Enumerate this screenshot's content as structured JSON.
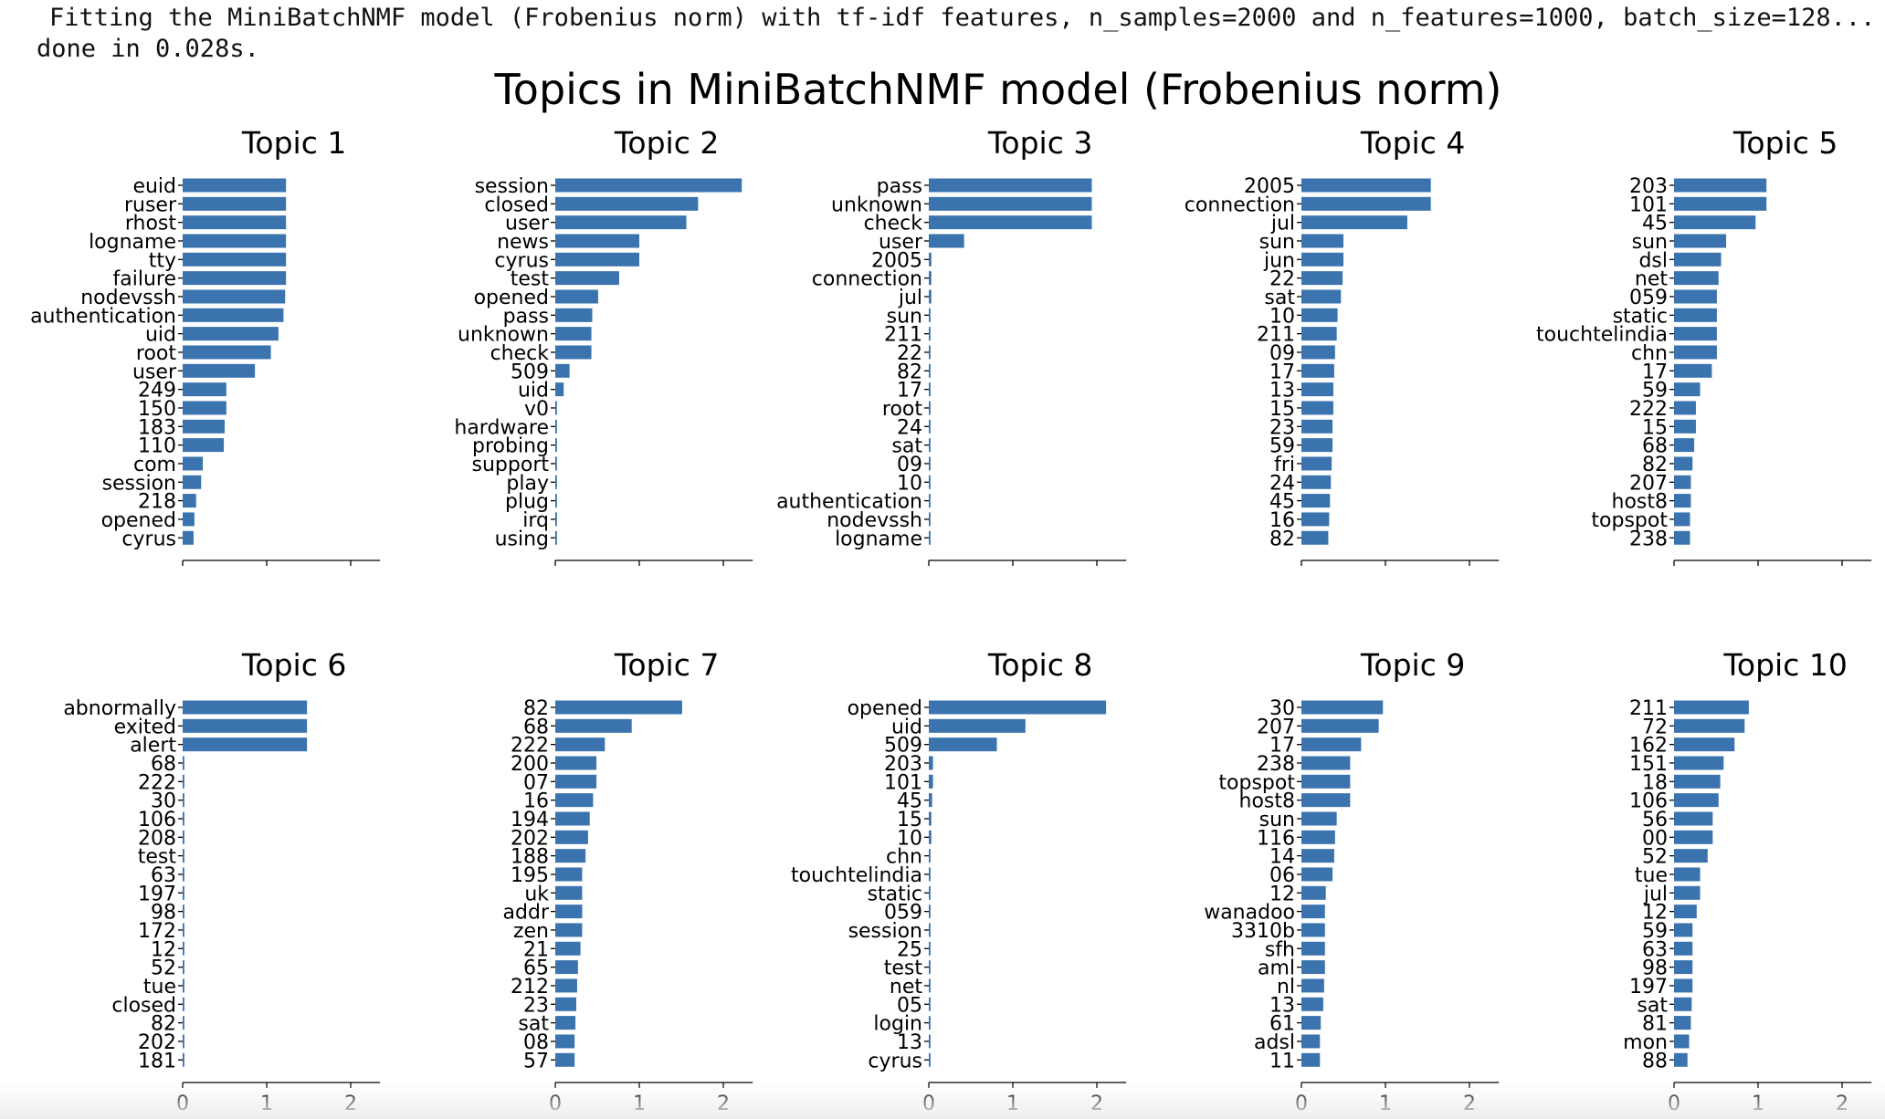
{
  "log": {
    "line1": "Fitting the MiniBatchNMF model (Frobenius norm) with tf-idf features, n_samples=2000 and n_features=1000, batch_size=128...",
    "line2": "done in 0.028s."
  },
  "colors": {
    "bar": "#3a73ad",
    "axis": "#000000"
  },
  "chart_data": {
    "type": "bar",
    "orientation": "horizontal",
    "title": "Topics in MiniBatchNMF model (Frobenius norm)",
    "layout": "2x5 grid",
    "xlim": [
      0,
      2.35
    ],
    "xticks": [
      0,
      1,
      2
    ],
    "grid": false,
    "topics": [
      {
        "title": "Topic 1",
        "words": [
          "euid",
          "ruser",
          "rhost",
          "logname",
          "tty",
          "failure",
          "nodevssh",
          "authentication",
          "uid",
          "root",
          "user",
          "249",
          "150",
          "183",
          "110",
          "com",
          "session",
          "218",
          "opened",
          "cyrus"
        ],
        "weights": [
          1.23,
          1.23,
          1.23,
          1.23,
          1.23,
          1.23,
          1.22,
          1.2,
          1.14,
          1.05,
          0.86,
          0.52,
          0.52,
          0.5,
          0.49,
          0.24,
          0.22,
          0.16,
          0.14,
          0.13
        ]
      },
      {
        "title": "Topic 2",
        "words": [
          "session",
          "closed",
          "user",
          "news",
          "cyrus",
          "test",
          "opened",
          "pass",
          "unknown",
          "check",
          "509",
          "uid",
          "v0",
          "hardware",
          "probing",
          "support",
          "play",
          "plug",
          "irq",
          "using"
        ],
        "weights": [
          2.22,
          1.7,
          1.56,
          1.0,
          1.0,
          0.76,
          0.51,
          0.44,
          0.43,
          0.43,
          0.17,
          0.1,
          0.02,
          0.02,
          0.02,
          0.02,
          0.02,
          0.02,
          0.02,
          0.02
        ]
      },
      {
        "title": "Topic 3",
        "words": [
          "pass",
          "unknown",
          "check",
          "user",
          "2005",
          "connection",
          "jul",
          "sun",
          "211",
          "22",
          "82",
          "17",
          "root",
          "24",
          "sat",
          "09",
          "10",
          "authentication",
          "nodevssh",
          "logname"
        ],
        "weights": [
          1.94,
          1.94,
          1.94,
          0.42,
          0.03,
          0.03,
          0.03,
          0.02,
          0.02,
          0.02,
          0.02,
          0.02,
          0.02,
          0.02,
          0.02,
          0.02,
          0.02,
          0.02,
          0.02,
          0.02
        ]
      },
      {
        "title": "Topic 4",
        "words": [
          "2005",
          "connection",
          "jul",
          "sun",
          "jun",
          "22",
          "sat",
          "10",
          "211",
          "09",
          "17",
          "13",
          "15",
          "23",
          "59",
          "fri",
          "24",
          "45",
          "16",
          "82"
        ],
        "weights": [
          1.54,
          1.54,
          1.26,
          0.5,
          0.5,
          0.49,
          0.47,
          0.43,
          0.42,
          0.4,
          0.39,
          0.38,
          0.38,
          0.37,
          0.37,
          0.36,
          0.35,
          0.34,
          0.33,
          0.32
        ]
      },
      {
        "title": "Topic 5",
        "words": [
          "203",
          "101",
          "45",
          "sun",
          "dsl",
          "net",
          "059",
          "static",
          "touchtelindia",
          "chn",
          "17",
          "59",
          "222",
          "15",
          "68",
          "82",
          "207",
          "host8",
          "topspot",
          "238"
        ],
        "weights": [
          1.1,
          1.1,
          0.97,
          0.62,
          0.56,
          0.53,
          0.51,
          0.51,
          0.51,
          0.51,
          0.45,
          0.31,
          0.26,
          0.26,
          0.24,
          0.22,
          0.2,
          0.2,
          0.19,
          0.19
        ]
      },
      {
        "title": "Topic 6",
        "words": [
          "abnormally",
          "exited",
          "alert",
          "68",
          "222",
          "30",
          "106",
          "208",
          "test",
          "63",
          "197",
          "98",
          "172",
          "12",
          "52",
          "tue",
          "closed",
          "82",
          "202",
          "181"
        ],
        "weights": [
          1.48,
          1.48,
          1.48,
          0.02,
          0.02,
          0.02,
          0.02,
          0.02,
          0.02,
          0.02,
          0.02,
          0.02,
          0.02,
          0.02,
          0.02,
          0.02,
          0.02,
          0.02,
          0.02,
          0.02
        ]
      },
      {
        "title": "Topic 7",
        "words": [
          "82",
          "68",
          "222",
          "200",
          "07",
          "16",
          "194",
          "202",
          "188",
          "195",
          "uk",
          "addr",
          "zen",
          "21",
          "65",
          "212",
          "23",
          "sat",
          "08",
          "57"
        ],
        "weights": [
          1.51,
          0.91,
          0.59,
          0.49,
          0.49,
          0.45,
          0.41,
          0.39,
          0.36,
          0.32,
          0.32,
          0.32,
          0.32,
          0.3,
          0.27,
          0.26,
          0.25,
          0.24,
          0.23,
          0.23
        ]
      },
      {
        "title": "Topic 8",
        "words": [
          "opened",
          "uid",
          "509",
          "203",
          "101",
          "45",
          "15",
          "10",
          "chn",
          "touchtelindia",
          "static",
          "059",
          "session",
          "25",
          "test",
          "net",
          "05",
          "login",
          "13",
          "cyrus"
        ],
        "weights": [
          2.11,
          1.15,
          0.81,
          0.05,
          0.05,
          0.04,
          0.03,
          0.03,
          0.02,
          0.02,
          0.02,
          0.02,
          0.02,
          0.02,
          0.02,
          0.02,
          0.02,
          0.02,
          0.02,
          0.02
        ]
      },
      {
        "title": "Topic 9",
        "words": [
          "30",
          "207",
          "17",
          "238",
          "topspot",
          "host8",
          "sun",
          "116",
          "14",
          "06",
          "12",
          "wanadoo",
          "3310b",
          "sfh",
          "aml",
          "nl",
          "13",
          "61",
          "adsl",
          "11"
        ],
        "weights": [
          0.97,
          0.92,
          0.71,
          0.58,
          0.58,
          0.58,
          0.42,
          0.4,
          0.39,
          0.37,
          0.29,
          0.28,
          0.28,
          0.28,
          0.28,
          0.27,
          0.26,
          0.23,
          0.22,
          0.22
        ]
      },
      {
        "title": "Topic 10",
        "words": [
          "211",
          "72",
          "162",
          "151",
          "18",
          "106",
          "56",
          "00",
          "52",
          "tue",
          "jul",
          "12",
          "59",
          "63",
          "98",
          "197",
          "sat",
          "81",
          "mon",
          "88"
        ],
        "weights": [
          0.89,
          0.84,
          0.72,
          0.59,
          0.55,
          0.53,
          0.46,
          0.46,
          0.4,
          0.31,
          0.31,
          0.27,
          0.22,
          0.22,
          0.22,
          0.22,
          0.21,
          0.2,
          0.18,
          0.16
        ]
      }
    ]
  }
}
